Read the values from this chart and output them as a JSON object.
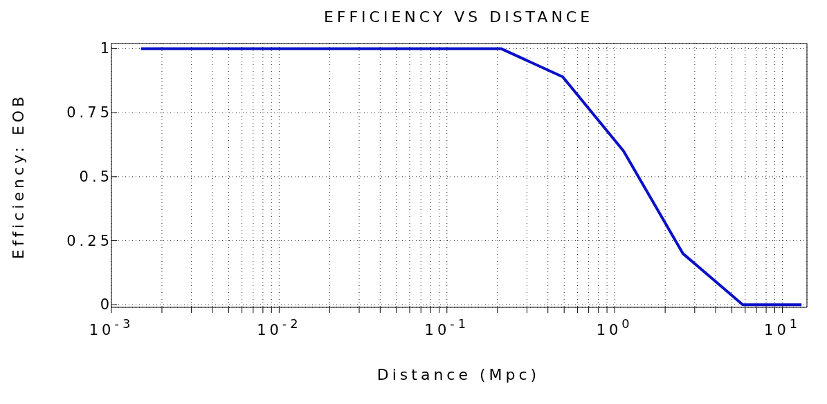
{
  "chart_data": {
    "type": "line",
    "title": "EFFICIENCY VS DISTANCE",
    "xlabel": "Distance (Mpc)",
    "ylabel": "Efficiency: EOB",
    "x": [
      0.0015,
      0.21,
      0.49,
      1.13,
      2.55,
      5.8,
      13
    ],
    "series": [
      {
        "color": "#0a10c8",
        "values": [
          1,
          1,
          0.89,
          0.6,
          0.2,
          0,
          0
        ]
      }
    ],
    "log": "x",
    "xlim": [
      0.001,
      14
    ],
    "ylim": [
      -0.01,
      1.02
    ],
    "xticks": [
      {
        "value": 0.001,
        "label": "10$^{-3}$"
      },
      {
        "value": 0.002,
        "label": null
      },
      {
        "value": 0.003,
        "label": null
      },
      {
        "value": 0.004,
        "label": null
      },
      {
        "value": 0.005,
        "label": null
      },
      {
        "value": 0.006,
        "label": null
      },
      {
        "value": 0.007,
        "label": null
      },
      {
        "value": 0.008,
        "label": null
      },
      {
        "value": 0.009,
        "label": null
      },
      {
        "value": 0.01,
        "label": "10$^{-2}$"
      },
      {
        "value": 0.02,
        "label": null
      },
      {
        "value": 0.03,
        "label": null
      },
      {
        "value": 0.04,
        "label": null
      },
      {
        "value": 0.05,
        "label": null
      },
      {
        "value": 0.06,
        "label": null
      },
      {
        "value": 0.07,
        "label": null
      },
      {
        "value": 0.08,
        "label": null
      },
      {
        "value": 0.09,
        "label": null
      },
      {
        "value": 0.1,
        "label": "10$^{-1}$"
      },
      {
        "value": 0.2,
        "label": null
      },
      {
        "value": 0.3,
        "label": null
      },
      {
        "value": 0.4,
        "label": null
      },
      {
        "value": 0.5,
        "label": null
      },
      {
        "value": 0.6,
        "label": null
      },
      {
        "value": 0.7,
        "label": null
      },
      {
        "value": 0.8,
        "label": null
      },
      {
        "value": 0.9,
        "label": null
      },
      {
        "value": 1,
        "label": "10$^{0}$"
      },
      {
        "value": 2,
        "label": null
      },
      {
        "value": 3,
        "label": null
      },
      {
        "value": 4,
        "label": null
      },
      {
        "value": 5,
        "label": null
      },
      {
        "value": 6,
        "label": null
      },
      {
        "value": 7,
        "label": null
      },
      {
        "value": 8,
        "label": null
      },
      {
        "value": 9,
        "label": null
      },
      {
        "value": 10,
        "label": "10$^{1}$"
      }
    ],
    "yticks": [
      0,
      {
        "value": 0.25,
        "label": "0.25"
      },
      {
        "value": 0.5,
        "label": "0.5"
      },
      {
        "value": 0.75,
        "label": "0.75"
      },
      1
    ],
    "grid": true,
    "line_style": "solid",
    "marker": "none"
  }
}
